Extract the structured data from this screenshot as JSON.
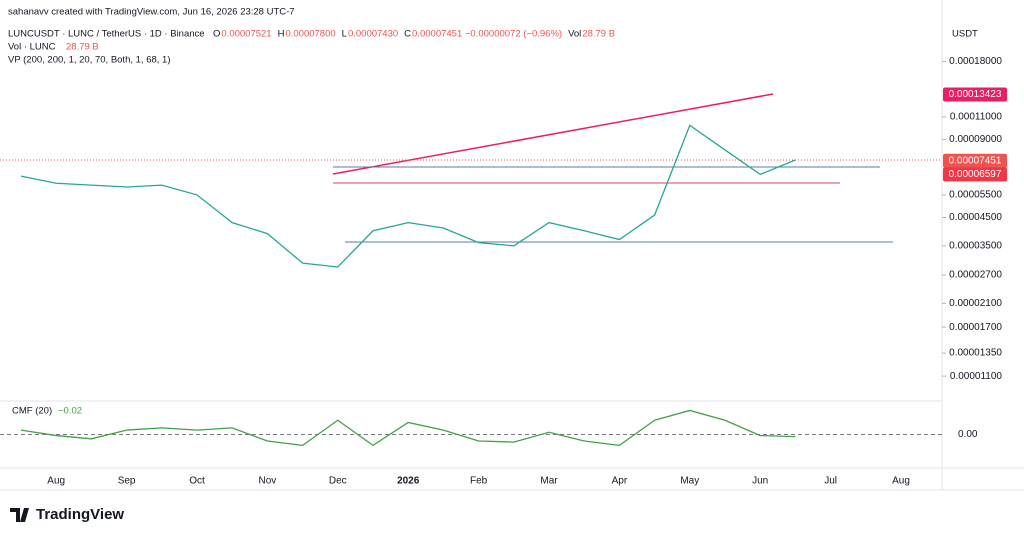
{
  "chart_data": {
    "type": "line",
    "title": "sahanavv created with TradingView.com, Jun 16, 2026 23:28 UTC-7",
    "symbol": "LUNCUSDT · LUNC / TetherUS · 1D · Binance",
    "ohlc": [
      {
        "key": "O",
        "text": "0.00007521"
      },
      {
        "key": "H",
        "text": "0.00007800"
      },
      {
        "key": "L",
        "text": "0.00007430"
      },
      {
        "key": "C",
        "text": "0.00007451 −0.00000072 (−0.96%)"
      },
      {
        "key": "Vol",
        "text": "28.79 B"
      }
    ],
    "volume_legend": "Vol · LUNC",
    "volume_value": "28.79 B",
    "vp_legend": "VP (200, 200, 1, 20, 70, Both, 1, 68, 1)",
    "currency": "USDT",
    "brand": "TradingView",
    "log_scale": true,
    "categories": [
      null,
      "Aug",
      null,
      "Sep",
      null,
      "Oct",
      null,
      "Nov",
      null,
      "Dec",
      null,
      "2026",
      null,
      "Feb",
      null,
      "Mar",
      null,
      "Apr",
      null,
      "May",
      null,
      "Jun",
      null,
      "Jul",
      null,
      "Aug"
    ],
    "series": [
      {
        "name": "LUNCUSDT",
        "color": "#26a69a",
        "values": [
          6.5e-05,
          6.1e-05,
          6e-05,
          5.9e-05,
          6e-05,
          5.5e-05,
          4.3e-05,
          3.9e-05,
          3e-05,
          2.9e-05,
          4e-05,
          4.3e-05,
          4.1e-05,
          3.6e-05,
          3.5e-05,
          4.3e-05,
          4e-05,
          3.7e-05,
          4.6e-05,
          0.000102,
          8.2e-05,
          6.6e-05,
          7.5e-05,
          null,
          null,
          null
        ]
      }
    ],
    "ylim": [
      8.9e-06,
      0.00026
    ],
    "yticks": [
      {
        "value": 0.00018,
        "label": "0.00018000"
      },
      {
        "value": 0.00011,
        "label": "0.00011000"
      },
      {
        "value": 9e-05,
        "label": "0.00009000"
      },
      {
        "value": 5.5e-05,
        "label": "0.00005500"
      },
      {
        "value": 4.5e-05,
        "label": "0.00004500"
      },
      {
        "value": 3.5e-05,
        "label": "0.00003500"
      },
      {
        "value": 2.7e-05,
        "label": "0.00002700"
      },
      {
        "value": 2.1e-05,
        "label": "0.00002100"
      },
      {
        "value": 1.7e-05,
        "label": "0.00001700"
      },
      {
        "value": 1.35e-05,
        "label": "0.00001350"
      },
      {
        "value": 1.1e-05,
        "label": "0.00001100"
      }
    ],
    "price_tags": [
      {
        "value": 0.00013423,
        "label": "0.00013423",
        "color": "#e91e63"
      },
      {
        "value": 7.451e-05,
        "label": "0.00007451",
        "color": "#ef5350"
      },
      {
        "value": 6.597e-05,
        "label": "0.00006597",
        "color": "#f23645"
      }
    ],
    "cmf": {
      "name": "CMF (20)",
      "value_label": "−0.02",
      "color": "#43a047",
      "values": [
        0.04,
        -0.01,
        -0.04,
        0.04,
        0.06,
        0.04,
        0.06,
        -0.06,
        -0.1,
        0.13,
        -0.1,
        0.11,
        0.04,
        -0.06,
        -0.07,
        0.02,
        -0.06,
        -0.1,
        0.13,
        0.22,
        0.13,
        -0.01,
        -0.02,
        null,
        null,
        null
      ],
      "ylim": [
        -0.28,
        0.27
      ],
      "yticks": [
        {
          "value": 0,
          "label": "0.00"
        }
      ]
    }
  }
}
